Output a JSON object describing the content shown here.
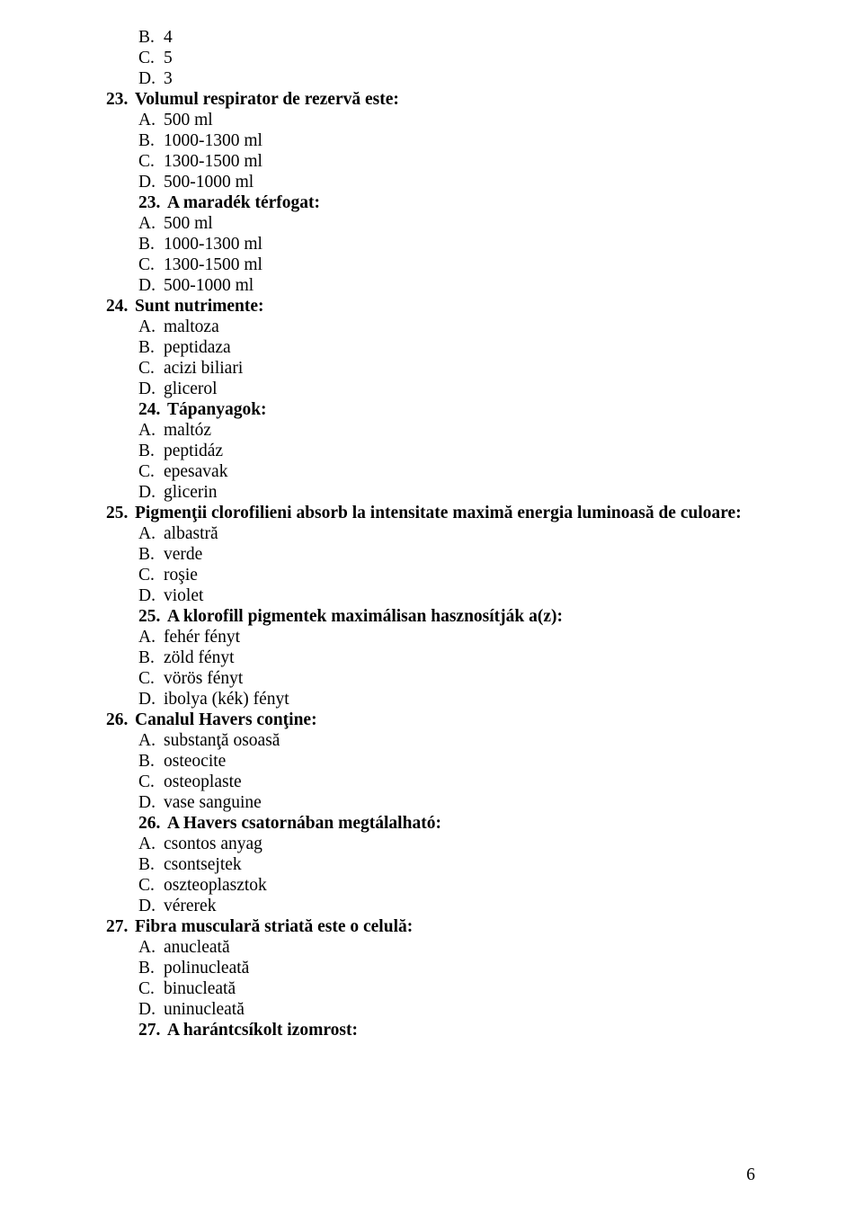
{
  "font_family": "Times New Roman",
  "font_size_pt": 14.5,
  "text_color": "#000000",
  "bg_color": "#ffffff",
  "page_number": "6",
  "leading_opts": [
    {
      "letter": "B.",
      "text": "4"
    },
    {
      "letter": "C.",
      "text": "5"
    },
    {
      "letter": "D.",
      "text": "3"
    }
  ],
  "questions": [
    {
      "num": "23.",
      "text": "Volumul respirator de rezervă este:",
      "indent": "lvl1",
      "opts": [
        {
          "letter": "A.",
          "text": "500 ml"
        },
        {
          "letter": "B.",
          "text": "1000-1300 ml"
        },
        {
          "letter": "C.",
          "text": "1300-1500 ml"
        },
        {
          "letter": "D.",
          "text": "500-1000 ml"
        }
      ],
      "trailing": {
        "num": "23.",
        "text": "A maradék térfogat:",
        "opts": [
          {
            "letter": "A.",
            "text": "500 ml"
          },
          {
            "letter": "B.",
            "text": "1000-1300 ml"
          },
          {
            "letter": "C.",
            "text": "1300-1500 ml"
          },
          {
            "letter": "D.",
            "text": "500-1000 ml"
          }
        ]
      }
    },
    {
      "num": "24.",
      "text": "Sunt nutrimente:",
      "indent": "lvl1",
      "opts": [
        {
          "letter": "A.",
          "text": "maltoza"
        },
        {
          "letter": "B.",
          "text": "peptidaza"
        },
        {
          "letter": "C.",
          "text": "acizi biliari"
        },
        {
          "letter": "D.",
          "text": "glicerol"
        }
      ],
      "trailing": {
        "num": "24.",
        "text": "Tápanyagok:",
        "opts": [
          {
            "letter": "A.",
            "text": "maltóz"
          },
          {
            "letter": "B.",
            "text": "peptidáz"
          },
          {
            "letter": "C.",
            "text": "epesavak"
          },
          {
            "letter": "D.",
            "text": "glicerin"
          }
        ]
      }
    },
    {
      "num": "25.",
      "text": "Pigmenţii clorofilieni absorb la intensitate maximă energia luminoasă de culoare:",
      "indent": "lvl1",
      "opts": [
        {
          "letter": "A.",
          "text": "albastră"
        },
        {
          "letter": "B.",
          "text": "verde"
        },
        {
          "letter": "C.",
          "text": "roşie"
        },
        {
          "letter": "D.",
          "text": "violet"
        }
      ],
      "trailing": {
        "num": "25.",
        "text": "A klorofill pigmentek maximálisan hasznosítják a(z):",
        "opts": [
          {
            "letter": "A.",
            "text": "fehér fényt"
          },
          {
            "letter": "B.",
            "text": "zöld fényt"
          },
          {
            "letter": "C.",
            "text": "vörös fényt"
          },
          {
            "letter": "D.",
            "text": "ibolya (kék) fényt"
          }
        ]
      }
    },
    {
      "num": "26.",
      "text": "Canalul Havers conţine:",
      "indent": "lvl1",
      "opts": [
        {
          "letter": "A.",
          "text": "substanţă osoasă"
        },
        {
          "letter": "B.",
          "text": "osteocite"
        },
        {
          "letter": "C.",
          "text": "osteoplaste"
        },
        {
          "letter": "D.",
          "text": "vase sanguine"
        }
      ],
      "trailing": {
        "num": "26.",
        "text": "A Havers csatornában megtálalható:",
        "opts": [
          {
            "letter": "A.",
            "text": "csontos anyag"
          },
          {
            "letter": "B.",
            "text": "csontsejtek"
          },
          {
            "letter": "C.",
            "text": "oszteoplasztok"
          },
          {
            "letter": "D.",
            "text": "vérerek"
          }
        ]
      }
    },
    {
      "num": "27.",
      "text": "Fibra musculară striată este o celulă:",
      "indent": "lvl1",
      "opts": [
        {
          "letter": "A.",
          "text": "anucleată"
        },
        {
          "letter": "B.",
          "text": "polinucleată"
        },
        {
          "letter": "C.",
          "text": "binucleată"
        },
        {
          "letter": "D.",
          "text": "uninucleată"
        }
      ],
      "trailing": {
        "num": "27.",
        "text": "A harántcsíkolt izomrost:",
        "opts": []
      }
    }
  ]
}
